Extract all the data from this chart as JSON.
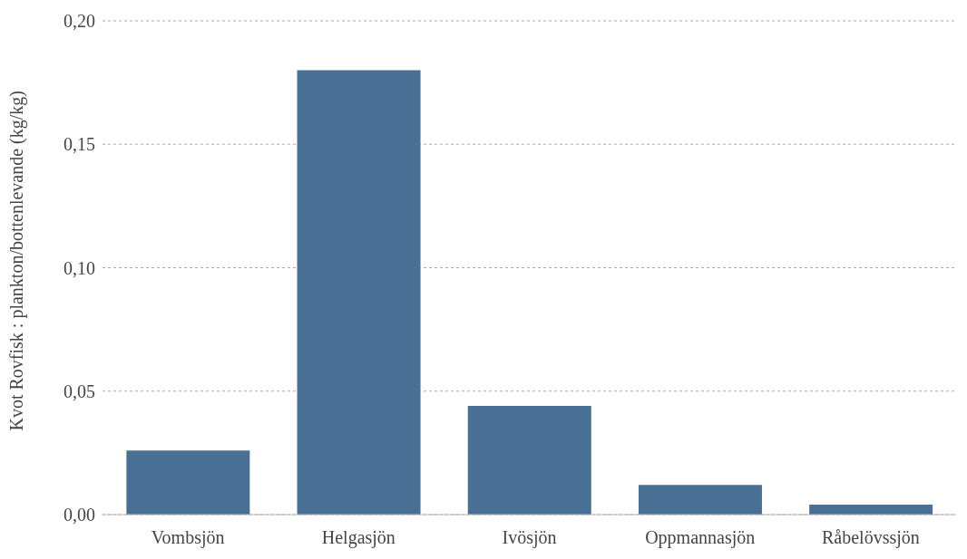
{
  "chart_data": {
    "type": "bar",
    "ylabel": "Kvot Rovfisk : plankton/bottenlevande (kg/kg)",
    "categories": [
      "Vombsjön",
      "Helgasjön",
      "Ivösjön",
      "Oppmannasjön",
      "Råbelövssjön"
    ],
    "values": [
      0.026,
      0.18,
      0.044,
      0.012,
      0.004
    ],
    "color": "#4a6f94",
    "ylim": [
      0,
      0.2
    ],
    "yticks": [
      {
        "value": 0,
        "label": "0,00"
      },
      {
        "value": 0.05,
        "label": "0,05"
      },
      {
        "value": 0.1,
        "label": "0,10"
      },
      {
        "value": 0.15,
        "label": "0,15"
      },
      {
        "value": 0.2,
        "label": "0,20"
      }
    ],
    "grid": "y"
  }
}
